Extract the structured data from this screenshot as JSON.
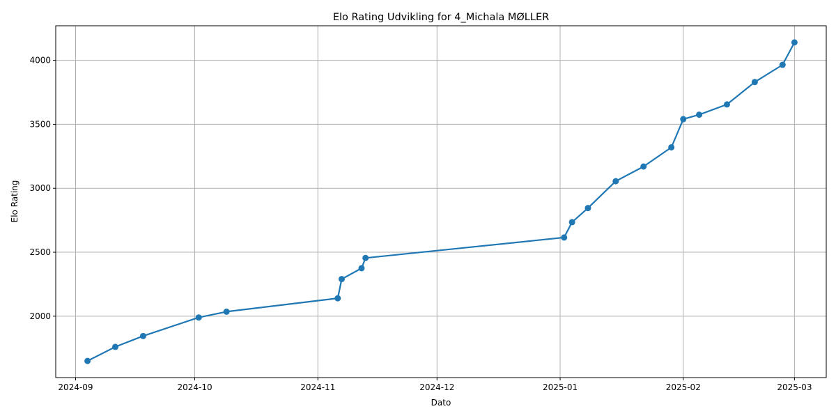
{
  "chart_data": {
    "type": "line",
    "title": "Elo Rating Udvikling for 4_Michala MØLLER",
    "xlabel": "Dato",
    "ylabel": "Elo Rating",
    "x_ticks": [
      "2024-09",
      "2024-10",
      "2024-11",
      "2024-12",
      "2025-01",
      "2025-02",
      "2025-03"
    ],
    "y_ticks": [
      2000,
      2500,
      3000,
      3500,
      4000
    ],
    "xlim": [
      "2024-08-27",
      "2025-03-09"
    ],
    "ylim": [
      1520,
      4270
    ],
    "grid": true,
    "color": "#1f77b4",
    "series": [
      {
        "x": [
          "2024-09-04",
          "2024-09-11",
          "2024-09-18",
          "2024-10-02",
          "2024-10-09",
          "2024-11-06",
          "2024-11-07",
          "2024-11-12",
          "2024-11-13",
          "2025-01-02",
          "2025-01-04",
          "2025-01-08",
          "2025-01-15",
          "2025-01-22",
          "2025-01-29",
          "2025-02-01",
          "2025-02-05",
          "2025-02-12",
          "2025-02-19",
          "2025-02-26",
          "2025-03-01"
        ],
        "y": [
          1650,
          1760,
          1845,
          1990,
          2035,
          2140,
          2290,
          2375,
          2455,
          2615,
          2735,
          2845,
          3055,
          3170,
          3320,
          3540,
          3575,
          3655,
          3830,
          3965,
          4140
        ]
      }
    ]
  }
}
